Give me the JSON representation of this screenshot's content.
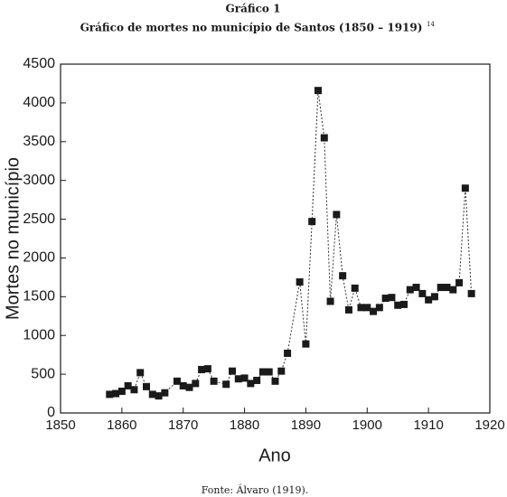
{
  "chart_data": {
    "type": "line",
    "heading": "Gráfico 1",
    "title": "Gráfico de mortes no município de Santos (1850 – 1919)",
    "title_note": "14",
    "xlabel": "Ano",
    "ylabel": "Mortes no município",
    "source": "Fonte: Álvaro (1919).",
    "x": [
      1858,
      1859,
      1860,
      1861,
      1862,
      1863,
      1864,
      1865,
      1866,
      1867,
      1869,
      1870,
      1871,
      1872,
      1873,
      1874,
      1875,
      1877,
      1878,
      1879,
      1880,
      1881,
      1882,
      1883,
      1884,
      1885,
      1886,
      1887,
      1889,
      1890,
      1891,
      1892,
      1893,
      1894,
      1895,
      1896,
      1897,
      1898,
      1899,
      1900,
      1901,
      1902,
      1903,
      1904,
      1905,
      1906,
      1907,
      1908,
      1909,
      1910,
      1911,
      1912,
      1913,
      1914,
      1915,
      1916,
      1917
    ],
    "values": [
      240,
      250,
      280,
      350,
      300,
      520,
      340,
      240,
      220,
      260,
      410,
      350,
      330,
      380,
      560,
      570,
      410,
      370,
      540,
      440,
      450,
      380,
      420,
      530,
      530,
      410,
      540,
      770,
      1690,
      890,
      2470,
      4160,
      3550,
      1440,
      2560,
      1770,
      1330,
      1610,
      1360,
      1360,
      1310,
      1360,
      1480,
      1490,
      1390,
      1400,
      1590,
      1620,
      1540,
      1460,
      1500,
      1620,
      1620,
      1590,
      1680,
      2900,
      1540
    ],
    "color": "#1a1a1a",
    "xlim": [
      1850,
      1920
    ],
    "xticks": [
      1850,
      1860,
      1870,
      1880,
      1890,
      1900,
      1910,
      1920
    ],
    "ylim": [
      0,
      4500
    ],
    "yticks": [
      0,
      500,
      1000,
      1500,
      2000,
      2500,
      3000,
      3500,
      4000,
      4500
    ]
  }
}
